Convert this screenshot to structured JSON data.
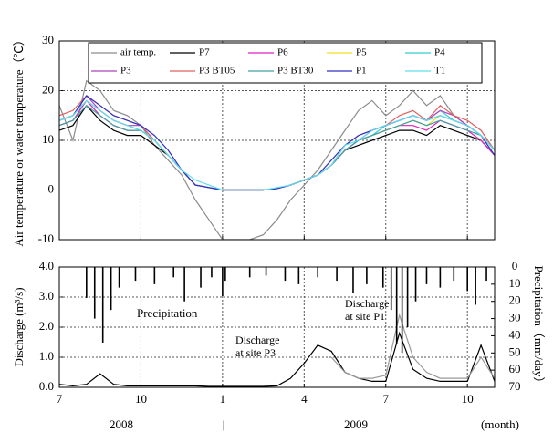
{
  "chart_data": [
    {
      "type": "line",
      "ylabel": "Air temperature or   water temperature（℃）",
      "x": [
        0,
        0.5,
        1,
        1.5,
        2,
        2.5,
        3,
        3.5,
        4,
        4.5,
        5,
        5.5,
        6,
        6.5,
        7,
        7.5,
        8,
        8.5,
        9,
        9.5,
        10,
        10.5,
        11,
        11.5,
        12,
        12.5,
        13,
        13.5,
        14,
        14.5,
        15,
        15.5,
        16
      ],
      "xlim": [
        0,
        16
      ],
      "xticks": [
        0,
        3,
        6,
        9,
        12,
        15
      ],
      "ylim": [
        -10,
        30
      ],
      "yticks": [
        -10,
        0,
        10,
        20,
        30
      ],
      "grid": true,
      "legend": "top",
      "series": [
        {
          "name": "air temp.",
          "color": "#8c8c8c",
          "values": [
            17,
            10,
            22,
            20,
            16,
            15,
            13,
            9,
            6,
            3,
            -2,
            -6,
            -10,
            -10,
            -10,
            -9,
            -6,
            -2,
            1,
            4,
            8,
            12,
            16,
            18,
            15,
            17,
            20,
            17,
            19,
            15,
            13,
            11,
            8
          ]
        },
        {
          "name": "P7",
          "color": "#000000",
          "values": [
            12,
            13,
            17,
            14,
            12,
            11,
            11,
            9,
            7,
            4,
            1,
            0.5,
            0,
            0,
            0,
            0,
            0.3,
            1,
            2,
            3,
            5,
            8,
            9,
            10,
            11,
            12,
            12,
            11,
            13,
            12,
            11,
            10,
            7
          ]
        },
        {
          "name": "P6",
          "color": "#e020c0",
          "values": [
            13,
            14,
            18,
            15,
            13,
            12,
            12,
            10,
            7,
            4,
            1,
            0.5,
            0,
            0,
            0,
            0,
            0.3,
            1,
            2,
            3,
            5,
            8,
            10,
            11,
            12,
            13,
            13,
            12,
            14,
            13,
            12,
            10,
            7
          ]
        },
        {
          "name": "P5",
          "color": "#f0e020",
          "values": [
            14,
            15,
            18,
            16,
            14,
            13,
            12,
            10,
            7,
            4,
            1,
            0.5,
            0,
            0,
            0,
            0,
            0.3,
            1,
            2,
            3,
            5,
            8,
            10,
            11,
            12,
            13,
            14,
            13,
            15,
            14,
            13,
            11,
            8
          ]
        },
        {
          "name": "P4",
          "color": "#30d0d0",
          "values": [
            14,
            15,
            18,
            16,
            14,
            13,
            12,
            10,
            7,
            4,
            1,
            0.5,
            0,
            0,
            0,
            0,
            0.3,
            1,
            2,
            3,
            5,
            8,
            10,
            11,
            13,
            14,
            15,
            14,
            16,
            14,
            13,
            11,
            8
          ]
        },
        {
          "name": "P3",
          "color": "#b040c0",
          "values": [
            14,
            15,
            19,
            16,
            14,
            13,
            13,
            10,
            7,
            4,
            1,
            0.5,
            0,
            0,
            0,
            0,
            0.3,
            1,
            2,
            3,
            5,
            8,
            10,
            12,
            13,
            14,
            15,
            14,
            16,
            15,
            13,
            11,
            8
          ]
        },
        {
          "name": "P3 BT05",
          "color": "#e06060",
          "values": [
            15,
            16,
            19,
            17,
            15,
            14,
            13,
            10,
            7,
            4,
            1,
            0.5,
            0,
            0,
            0,
            0,
            0.3,
            1,
            2,
            3,
            5,
            9,
            11,
            12,
            13,
            15,
            16,
            14,
            17,
            15,
            14,
            12,
            8
          ]
        },
        {
          "name": "P3 BT30",
          "color": "#40a0a0",
          "values": [
            13,
            14,
            17,
            15,
            13,
            12,
            12,
            10,
            7,
            4,
            1,
            0.5,
            0,
            0,
            0,
            0,
            0.3,
            1,
            2,
            3,
            5,
            8,
            10,
            11,
            12,
            13,
            14,
            13,
            14,
            13,
            12,
            11,
            8
          ]
        },
        {
          "name": "P1",
          "color": "#3030c0",
          "values": [
            14,
            15,
            19,
            17,
            15,
            14,
            13,
            11,
            8,
            4,
            1,
            0.5,
            0,
            0,
            0,
            0,
            0.3,
            1,
            2,
            3,
            6,
            9,
            11,
            12,
            13,
            14,
            15,
            14,
            15,
            14,
            13,
            11,
            7
          ]
        },
        {
          "name": "T1",
          "color": "#60e0f0",
          "values": [
            14,
            15,
            18,
            16,
            14,
            13,
            12,
            10,
            7,
            4,
            2,
            1,
            0,
            0,
            0,
            0,
            0.5,
            1,
            2,
            3,
            5,
            9,
            10,
            12,
            13,
            14,
            15,
            14,
            15,
            14,
            13,
            11,
            8
          ]
        }
      ]
    },
    {
      "type": "line",
      "ylabel": "Discharge  (m³/s)",
      "y2label": "Precipitation（mm/day）",
      "x": [
        0,
        0.5,
        1,
        1.5,
        2,
        2.5,
        3,
        3.5,
        4,
        4.5,
        5,
        5.5,
        6,
        6.5,
        7,
        7.5,
        8,
        8.5,
        9,
        9.5,
        10,
        10.5,
        11,
        11.5,
        12,
        12.5,
        13,
        13.5,
        14,
        14.5,
        15,
        15.5,
        16
      ],
      "xlim": [
        0,
        16
      ],
      "xticks": [
        {
          "value": 0,
          "label": "7"
        },
        {
          "value": 3,
          "label": "10"
        },
        {
          "value": 6,
          "label": "1"
        },
        {
          "value": 9,
          "label": "4"
        },
        {
          "value": 12,
          "label": "7"
        },
        {
          "value": 15,
          "label": "10"
        }
      ],
      "xlabel": "(month)",
      "year_labels": [
        "2008",
        "|",
        "2009"
      ],
      "ylim": [
        0,
        4
      ],
      "yticks": [
        {
          "value": 0,
          "label": "0.0"
        },
        {
          "value": 1,
          "label": "1.0"
        },
        {
          "value": 2,
          "label": "2.0"
        },
        {
          "value": 3,
          "label": "3.0"
        },
        {
          "value": 4,
          "label": "4.0"
        }
      ],
      "y2lim": [
        0,
        70
      ],
      "y2ticks": [
        0,
        10,
        20,
        30,
        40,
        50,
        60,
        70
      ],
      "y2_inverted": true,
      "grid": true,
      "annotations": [
        [
          "Precipitation"
        ],
        [
          "Discharge",
          "at site P3"
        ],
        [
          "Discharge",
          "at site P1"
        ]
      ],
      "series": [
        {
          "color": "#000000",
          "values": [
            0.1,
            0.05,
            0.1,
            0.45,
            0.1,
            0.05,
            0.05,
            0.05,
            0.05,
            0.05,
            0.05,
            0.03,
            0.03,
            0.03,
            0.03,
            0.03,
            0.05,
            0.3,
            0.8,
            1.4,
            1.2,
            0.5,
            0.3,
            0.2,
            0.2,
            1.8,
            0.6,
            0.3,
            0.2,
            0.2,
            0.2,
            1.4,
            0.2
          ]
        },
        {
          "color": "#9a9a9a",
          "values": [
            null,
            null,
            null,
            null,
            null,
            null,
            null,
            null,
            null,
            null,
            null,
            null,
            null,
            null,
            null,
            null,
            null,
            null,
            null,
            null,
            1.0,
            0.5,
            0.3,
            0.3,
            0.4,
            2.4,
            1.0,
            0.5,
            0.3,
            0.3,
            0.3,
            1.0,
            0.3
          ]
        },
        {
          "type": "bar",
          "axis": "y2",
          "color": "#000000",
          "x": [
            1.0,
            1.3,
            1.6,
            1.9,
            2.2,
            2.8,
            3.5,
            4.2,
            4.6,
            5.2,
            5.6,
            6.0,
            6.1,
            7.0,
            7.6,
            8.3,
            8.8,
            9.5,
            10.2,
            10.8,
            11.3,
            11.9,
            12.2,
            12.4,
            12.6,
            12.8,
            13.1,
            13.5,
            14.0,
            14.5,
            15.0,
            15.3,
            15.7
          ],
          "values": [
            18,
            30,
            44,
            25,
            12,
            8,
            10,
            6,
            20,
            12,
            6,
            17,
            8,
            6,
            5,
            8,
            10,
            6,
            8,
            15,
            10,
            12,
            25,
            45,
            50,
            35,
            20,
            10,
            12,
            8,
            14,
            22,
            8
          ]
        }
      ]
    }
  ]
}
